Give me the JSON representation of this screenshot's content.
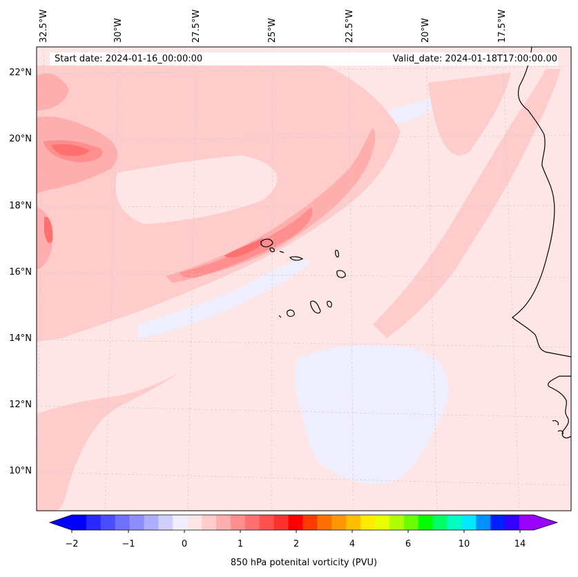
{
  "map": {
    "start_date": "Start date: 2024-01-16_00:00:00",
    "valid_date": "Valid_date: 2024-01-18T17:00:00.00",
    "lon_labels": [
      "32.5°W",
      "30°W",
      "27.5°W",
      "25°W",
      "22.5°W",
      "20°W",
      "17.5°W"
    ],
    "lat_labels": [
      "22°N",
      "20°N",
      "18°N",
      "16°N",
      "14°N",
      "12°N",
      "10°N"
    ]
  },
  "colorbar": {
    "title": "850 hPa potenital vorticity (PVU)",
    "tick_labels": [
      "−2",
      "−1",
      "0",
      "1",
      "2",
      "4",
      "6",
      "10",
      "14"
    ],
    "colors": [
      "#0000ff",
      "#2828ff",
      "#4c4cff",
      "#7070ff",
      "#8e8eff",
      "#aeaeff",
      "#d0d0ff",
      "#eeeeff",
      "#ffe6e6",
      "#ffcccc",
      "#ffaeae",
      "#ff8e8e",
      "#ff7070",
      "#ff5050",
      "#ff3030",
      "#ff0000",
      "#ff3a00",
      "#ff7000",
      "#ff9800",
      "#ffbe00",
      "#ffeb00",
      "#e8ff00",
      "#b0ff00",
      "#6aff00",
      "#00ff00",
      "#00ff66",
      "#00ffc0",
      "#00e8ff",
      "#0090ff",
      "#0020ff",
      "#3300ff",
      "#9900ff"
    ]
  }
}
